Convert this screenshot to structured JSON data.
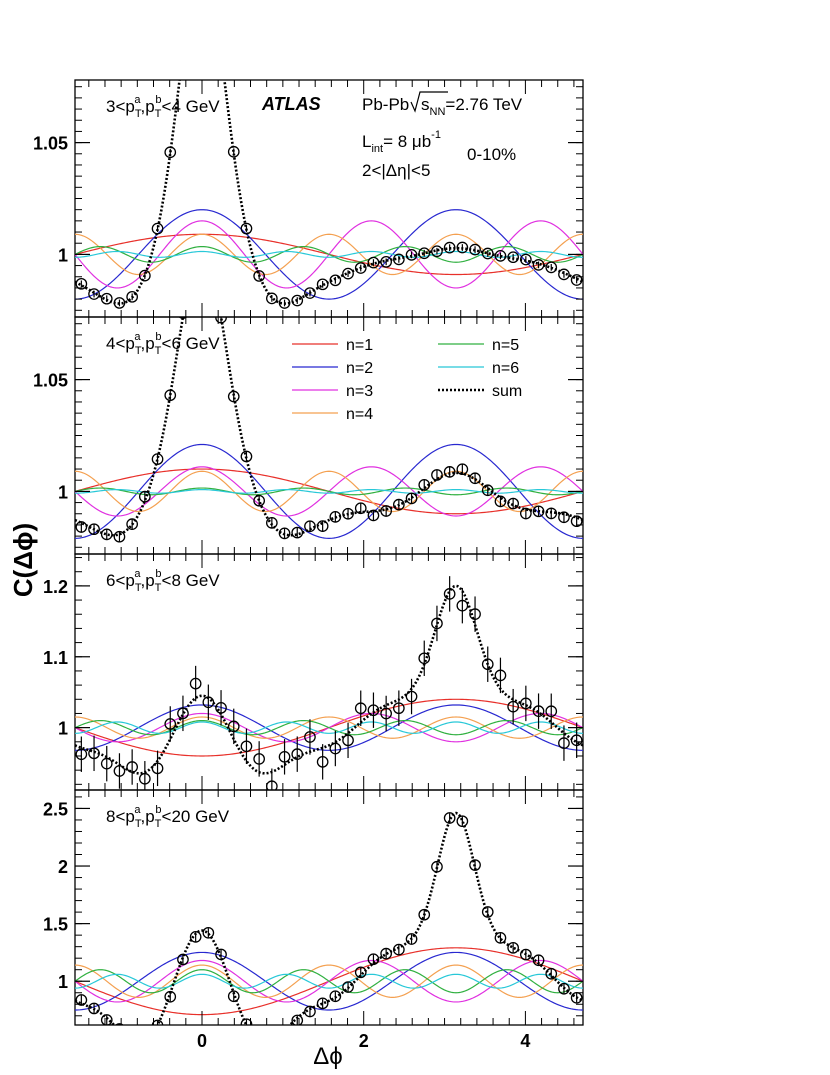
{
  "figure": {
    "experiment": "ATLAS",
    "collision": "Pb-Pb",
    "sqrt_s": "=2.76 TeV",
    "lumi": "= 8 μb",
    "lumi_exp": "-1",
    "eta_gap": "2<|Δη|<5",
    "centrality": "0-10%",
    "ylabel": "C(Δϕ)",
    "xlabel": "Δϕ"
  },
  "legend": [
    {
      "label": "n=1",
      "color": "#e8302a"
    },
    {
      "label": "n=2",
      "color": "#2828d0"
    },
    {
      "label": "n=3",
      "color": "#e030e0"
    },
    {
      "label": "n=4",
      "color": "#f4a050"
    },
    {
      "label": "n=5",
      "color": "#30b040"
    },
    {
      "label": "n=6",
      "color": "#28c8d8"
    },
    {
      "label": "sum",
      "color": "#000000"
    }
  ],
  "chart_data": [
    {
      "type": "scatter",
      "title": "3<p_T^a,p_T^b<4 GeV",
      "pt_label": "3<p",
      "pt_label_mid": "<4 GeV",
      "xlim": [
        -1.5708,
        4.7124
      ],
      "ylim": [
        0.972,
        1.078
      ],
      "yticks": [
        1,
        1.05
      ],
      "ytick_labels": [
        "1",
        "1.05"
      ],
      "xticks": [
        0,
        2,
        4
      ],
      "xtick_labels": [
        "0",
        "2",
        "4"
      ],
      "harmonics": [
        {
          "n": 1,
          "amp": 0.009
        },
        {
          "n": 2,
          "amp": 0.02
        },
        {
          "n": 3,
          "amp": 0.015
        },
        {
          "n": 4,
          "amp": 0.009
        },
        {
          "n": 5,
          "amp": 0.0035
        },
        {
          "n": 6,
          "amp": 0.0013
        }
      ],
      "peak": {
        "amp": 0.0735,
        "sigma": 0.24,
        "center": 0
      },
      "error": 0.0015,
      "jitter": 0.0007
    },
    {
      "type": "scatter",
      "title": "4<p_T^a,p_T^b<6 GeV",
      "pt_label": "4<p",
      "pt_label_mid": "<6 GeV",
      "xlim": [
        -1.5708,
        4.7124
      ],
      "ylim": [
        0.972,
        1.078
      ],
      "yticks": [
        1,
        1.05
      ],
      "ytick_labels": [
        "1",
        "1.05"
      ],
      "xticks": [
        0,
        2,
        4
      ],
      "xtick_labels": [
        "0",
        "2",
        "4"
      ],
      "harmonics": [
        {
          "n": 1,
          "amp": 0.01
        },
        {
          "n": 2,
          "amp": 0.021
        },
        {
          "n": 3,
          "amp": 0.011
        },
        {
          "n": 4,
          "amp": 0.009
        },
        {
          "n": 5,
          "amp": 0.0015
        },
        {
          "n": 6,
          "amp": 0.0008
        }
      ],
      "peak": {
        "amp": 0.055,
        "sigma": 0.25,
        "center": 0
      },
      "error": 0.0025,
      "jitter": 0.002
    },
    {
      "type": "scatter",
      "title": "6<p_T^a,p_T^b<8 GeV",
      "pt_label": "6<p",
      "pt_label_mid": "<8 GeV",
      "xlim": [
        -1.5708,
        4.7124
      ],
      "ylim": [
        0.912,
        1.245
      ],
      "yticks": [
        1,
        1.1,
        1.2
      ],
      "ytick_labels": [
        "1",
        "1.1",
        "1.2"
      ],
      "xticks": [
        0,
        2,
        4
      ],
      "xtick_labels": [
        "0",
        "2",
        "4"
      ],
      "harmonics": [
        {
          "n": 1,
          "amp": -0.04
        },
        {
          "n": 2,
          "amp": 0.032
        },
        {
          "n": 3,
          "amp": 0.02
        },
        {
          "n": 4,
          "amp": 0.015
        },
        {
          "n": 5,
          "amp": 0.01
        },
        {
          "n": 6,
          "amp": 0.008
        }
      ],
      "peak": {
        "amp": 0.135,
        "sigma": 0.25,
        "center": 3.1416
      },
      "error": 0.025,
      "jitter": 0.022
    },
    {
      "type": "scatter",
      "title": "8<p_T^a,p_T^b<20 GeV",
      "pt_label": "8<p",
      "pt_label_mid": "<20 GeV",
      "xlim": [
        -1.5708,
        4.7124
      ],
      "ylim": [
        0.62,
        2.66
      ],
      "yticks": [
        1,
        1.5,
        2,
        2.5
      ],
      "ytick_labels": [
        "1",
        "1.5",
        "2",
        "2.5"
      ],
      "xticks": [
        0,
        2,
        4
      ],
      "xtick_labels": [
        "0",
        "2",
        "4"
      ],
      "harmonics": [
        {
          "n": 1,
          "amp": -0.29
        },
        {
          "n": 2,
          "amp": 0.25
        },
        {
          "n": 3,
          "amp": 0.18
        },
        {
          "n": 4,
          "amp": 0.14
        },
        {
          "n": 5,
          "amp": 0.1
        },
        {
          "n": 6,
          "amp": 0.06
        }
      ],
      "peak": {
        "amp": 1.0,
        "sigma": 0.22,
        "center": 3.1416
      },
      "error": 0.04,
      "jitter": 0.035
    }
  ]
}
